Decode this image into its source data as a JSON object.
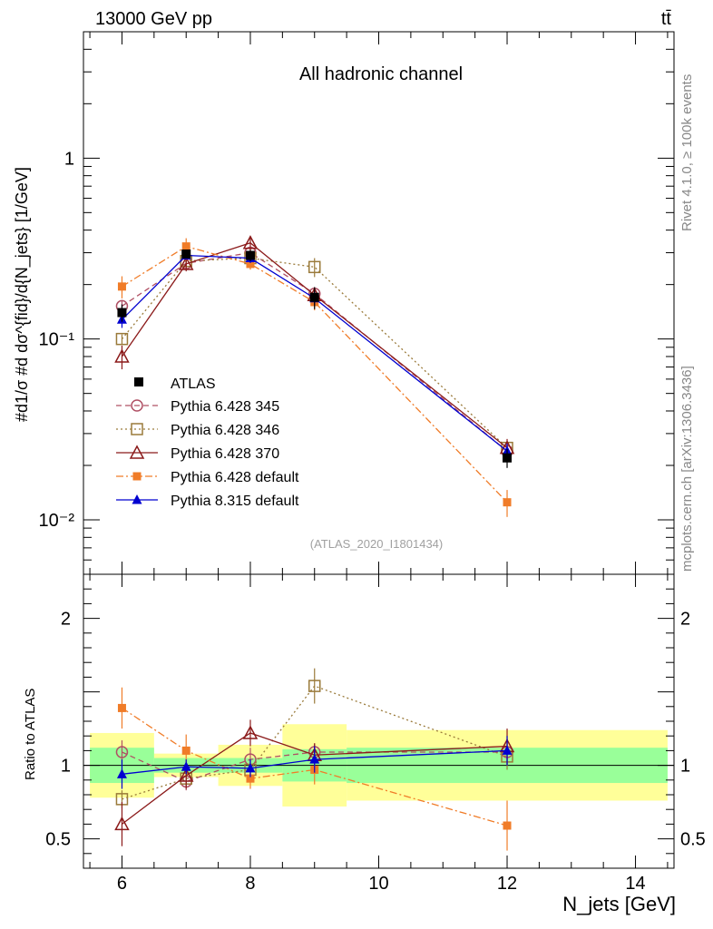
{
  "header": {
    "energy_label": "13000 GeV pp",
    "process_label": "tt̄"
  },
  "side_text": {
    "rivet": "Rivet 4.1.0, ≥ 100k events",
    "mcplots": "mcplots.cern.ch [arXiv:1306.3436]"
  },
  "main": {
    "channel_label": "All hadronic channel",
    "analysis_id": "(ATLAS_2020_I1801434)",
    "ylabel": "#d1/σ #d dσ^{fid}/d{N_jets} [1/GeV]"
  },
  "ratio": {
    "ylabel": "Ratio to ATLAS"
  },
  "chart_data": {
    "type": "scatter",
    "x": [
      6,
      7,
      8,
      9,
      12
    ],
    "xlim": [
      5.4,
      14.6
    ],
    "xticks": [
      6,
      8,
      10,
      12,
      14
    ],
    "xtick_labels": [
      "6",
      "8",
      "10",
      "12",
      "14"
    ],
    "xlabel": "N_jets [GeV]",
    "main_axis": {
      "scale": "log",
      "ylim": [
        0.005,
        5
      ],
      "yticks": [
        0.01,
        0.1,
        1
      ],
      "ytick_labels": [
        "10⁻²",
        "10⁻¹",
        "1"
      ]
    },
    "ratio_axis": {
      "ylim": [
        0.3,
        2.3
      ],
      "yticks": [
        0.5,
        1,
        2
      ],
      "ytick_labels": [
        "0.5",
        "1",
        "2"
      ]
    },
    "data": {
      "name": "ATLAS",
      "values": [
        0.14,
        0.295,
        0.29,
        0.17,
        0.022
      ],
      "bin_edges": [
        5.5,
        6.5,
        7.5,
        8.5,
        9.5,
        14.5
      ],
      "stat_band": [
        0.12,
        0.05,
        0.05,
        0.11,
        0.12
      ],
      "total_band": [
        0.22,
        0.08,
        0.14,
        0.28,
        0.24
      ]
    },
    "series": [
      {
        "name": "Pythia 6.428 345",
        "color": "#b05064",
        "marker": "circle-open",
        "dash": "6,4",
        "values": [
          0.152,
          0.262,
          0.3,
          0.178,
          0.024
        ],
        "ratio": [
          1.09,
          0.89,
          1.04,
          1.09,
          1.09
        ],
        "ratio_err": [
          0.08,
          0.06,
          0.08,
          0.06,
          0.09
        ]
      },
      {
        "name": "Pythia 6.428 346",
        "color": "#9a7a3a",
        "marker": "square-open",
        "dash": "2,3",
        "values": [
          0.1,
          0.27,
          0.28,
          0.25,
          0.025
        ],
        "ratio": [
          0.77,
          0.91,
          0.97,
          1.54,
          1.06
        ],
        "ratio_err": [
          0.06,
          0.05,
          0.07,
          0.12,
          0.09
        ]
      },
      {
        "name": "Pythia 6.428 370",
        "color": "#8b1a1a",
        "marker": "triangle-open",
        "dash": "",
        "values": [
          0.08,
          0.26,
          0.34,
          0.175,
          0.025
        ],
        "ratio": [
          0.6,
          0.93,
          1.22,
          1.07,
          1.13
        ],
        "ratio_err": [
          0.15,
          0.09,
          0.09,
          0.08,
          0.12
        ]
      },
      {
        "name": "Pythia 6.428 default",
        "color": "#f07c28",
        "marker": "square-filled",
        "dash": "8,3,2,3",
        "values": [
          0.195,
          0.325,
          0.26,
          0.16,
          0.0125
        ],
        "ratio": [
          1.39,
          1.1,
          0.91,
          0.97,
          0.59
        ],
        "ratio_err": [
          0.14,
          0.11,
          0.07,
          0.1,
          0.17
        ]
      },
      {
        "name": "Pythia 8.315 default",
        "color": "#0000d0",
        "marker": "triangle-filled",
        "dash": "",
        "values": [
          0.128,
          0.29,
          0.28,
          0.168,
          0.024
        ],
        "ratio": [
          0.94,
          0.99,
          0.98,
          1.04,
          1.1
        ],
        "ratio_err": [
          0.1,
          0.05,
          0.06,
          0.09,
          0.1
        ]
      }
    ]
  }
}
